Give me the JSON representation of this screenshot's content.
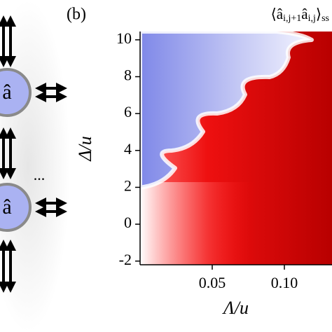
{
  "schematic": {
    "site_labels": [
      "â",
      "â"
    ],
    "ellipsis": "..."
  },
  "chart_data": {
    "type": "heatmap",
    "panel_label": "(b)",
    "title": [
      "⟨â",
      "i,j+1",
      "â",
      "i,j",
      "⟩",
      "ss"
    ],
    "x_label": "Λ/u",
    "y_label": "Δ/u",
    "xlim": [
      0,
      0.13
    ],
    "ylim": [
      -2.2,
      10.45
    ],
    "xticks": [
      0.05,
      {
        "value": 0.1,
        "label": "0.10"
      }
    ],
    "yticks": [
      -2,
      0,
      2,
      4,
      6,
      8,
      10
    ]
  }
}
